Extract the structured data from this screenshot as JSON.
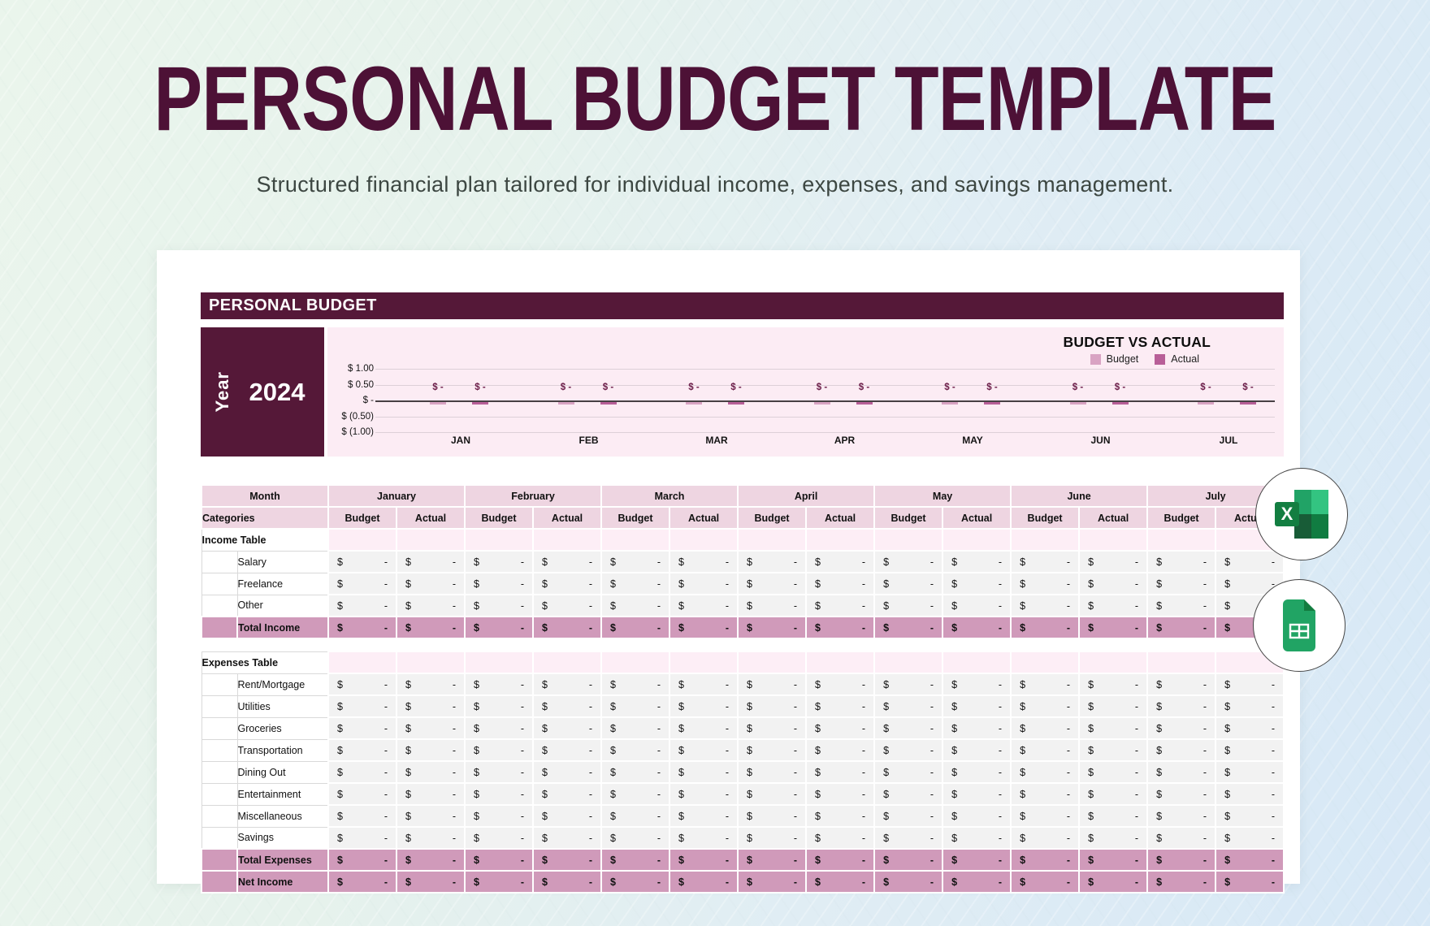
{
  "page": {
    "title": "PERSONAL BUDGET TEMPLATE",
    "subtitle": "Structured financial plan tailored for individual income, expenses, and savings management."
  },
  "sheet": {
    "header": "PERSONAL BUDGET",
    "year_label": "Year",
    "year_value": "2024"
  },
  "chart_data": {
    "type": "bar",
    "title": "BUDGET VS ACTUAL",
    "legend_position": "top-right",
    "categories": [
      "JAN",
      "FEB",
      "MAR",
      "APR",
      "MAY",
      "JUN",
      "JUL"
    ],
    "series": [
      {
        "name": "Budget",
        "values": [
          0,
          0,
          0,
          0,
          0,
          0,
          0
        ]
      },
      {
        "name": "Actual",
        "values": [
          0,
          0,
          0,
          0,
          0,
          0,
          0
        ]
      }
    ],
    "point_label": "$ -",
    "y_ticks": [
      "$ 1.00",
      "$ 0.50",
      "$ -",
      "$ (0.50)",
      "$ (1.00)"
    ],
    "ylim": [
      -1,
      1
    ],
    "grid": true,
    "colors": {
      "budget": "#d9a3c3",
      "actual": "#b85f98",
      "plot_bg": "#fcecf4"
    }
  },
  "table": {
    "month_header_label": "Month",
    "categories_label": "Categories",
    "months": [
      "January",
      "February",
      "March",
      "April",
      "May",
      "June",
      "July"
    ],
    "subheaders": [
      "Budget",
      "Actual"
    ],
    "income_section_label": "Income Table",
    "income_rows": [
      "Salary",
      "Freelance",
      "Other"
    ],
    "income_total_label": "Total Income",
    "expenses_section_label": "Expenses Table",
    "expense_rows": [
      "Rent/Mortgage",
      "Utilities",
      "Groceries",
      "Transportation",
      "Dining Out",
      "Entertainment",
      "Miscellaneous",
      "Savings"
    ],
    "expenses_total_label": "Total Expenses",
    "net_income_label": "Net Income",
    "cell_currency": "$",
    "cell_value": "-"
  },
  "icons": {
    "excel": "excel-icon",
    "google_sheets": "google-sheets-icon"
  },
  "colors": {
    "maroon": "#551838",
    "title_text": "#4d1136",
    "header_pink": "#eed5e1",
    "section_pink": "#fdeef6",
    "total_pink": "#d09aba",
    "cell_gray": "#f2f2f2",
    "excel_green": "#107c41",
    "sheets_green": "#21a464"
  }
}
